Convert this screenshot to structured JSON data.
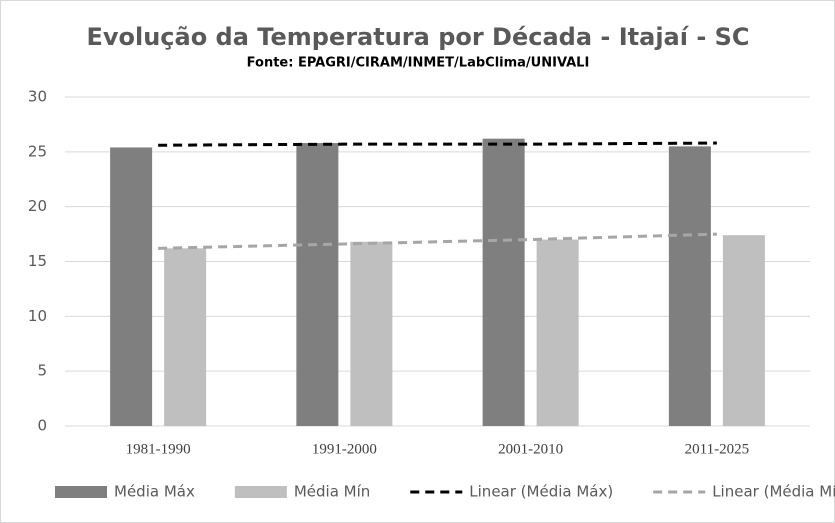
{
  "chart_data": {
    "type": "bar",
    "title": "Evolução da Temperatura por Década - Itajaí - SC",
    "subtitle": "Fonte: EPAGRI/CIRAM/INMET/LabClima/UNIVALI",
    "categories": [
      "1981-1990",
      "1991-2000",
      "2001-2010",
      "2011-2025"
    ],
    "series": [
      {
        "name": "Média Máx",
        "type": "bar",
        "color": "#7f7f7f",
        "values": [
          25.4,
          25.8,
          26.2,
          25.5
        ]
      },
      {
        "name": "Média Mín",
        "type": "bar",
        "color": "#bfbfbf",
        "values": [
          16.2,
          16.8,
          17.0,
          17.4
        ]
      },
      {
        "name": "Linear (Média Máx)",
        "type": "line",
        "dashed": true,
        "color": "#000000",
        "values": [
          25.6,
          25.7,
          25.7,
          25.8
        ]
      },
      {
        "name": "Linear (Média Mín)",
        "type": "line",
        "dashed": true,
        "color": "#a6a6a6",
        "values": [
          16.2,
          16.6,
          17.0,
          17.5
        ]
      }
    ],
    "ylim": [
      0,
      30
    ],
    "yticks": [
      0,
      5,
      10,
      15,
      20,
      25,
      30
    ],
    "grid": true,
    "legend": "bottom"
  }
}
